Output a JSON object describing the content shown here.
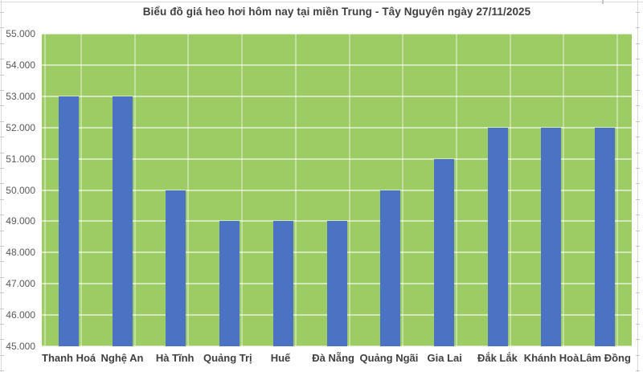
{
  "chart_data": {
    "type": "bar",
    "title": "Biểu đồ giá heo hơi hôm nay tại miền Trung - Tây Nguyên ngày 27/11/2025",
    "categories": [
      "Thanh Hoá",
      "Nghệ An",
      "Hà Tĩnh",
      "Quảng Trị",
      "Huế",
      "Đà Nẵng",
      "Quảng Ngãi",
      "Gia Lai",
      "Đắk Lắk",
      "Khánh Hoà",
      "Lâm Đồng"
    ],
    "values": [
      53000,
      53000,
      50000,
      49000,
      49000,
      49000,
      50000,
      51000,
      52000,
      52000,
      52000
    ],
    "ylim": [
      45000,
      55000
    ],
    "ytick_step": 1000,
    "ytick_labels": [
      "55.000",
      "54.000",
      "53.000",
      "52.000",
      "51.000",
      "50.000",
      "49.000",
      "48.000",
      "47.000",
      "46.000",
      "45.000"
    ],
    "grid": "horizontal-major",
    "legend": "none",
    "colors": {
      "bar": "#4C72C3",
      "plot_bg": "#9DCC64",
      "gridline": "rgba(255,255,255,0.55)",
      "bar_edge_line": "rgba(255,255,255,0.38)",
      "title_text": "#3F3F3F",
      "ytick_text": "#595959",
      "xtick_text": "#3F3F3F",
      "worksheet_line": "#DADADA"
    }
  }
}
